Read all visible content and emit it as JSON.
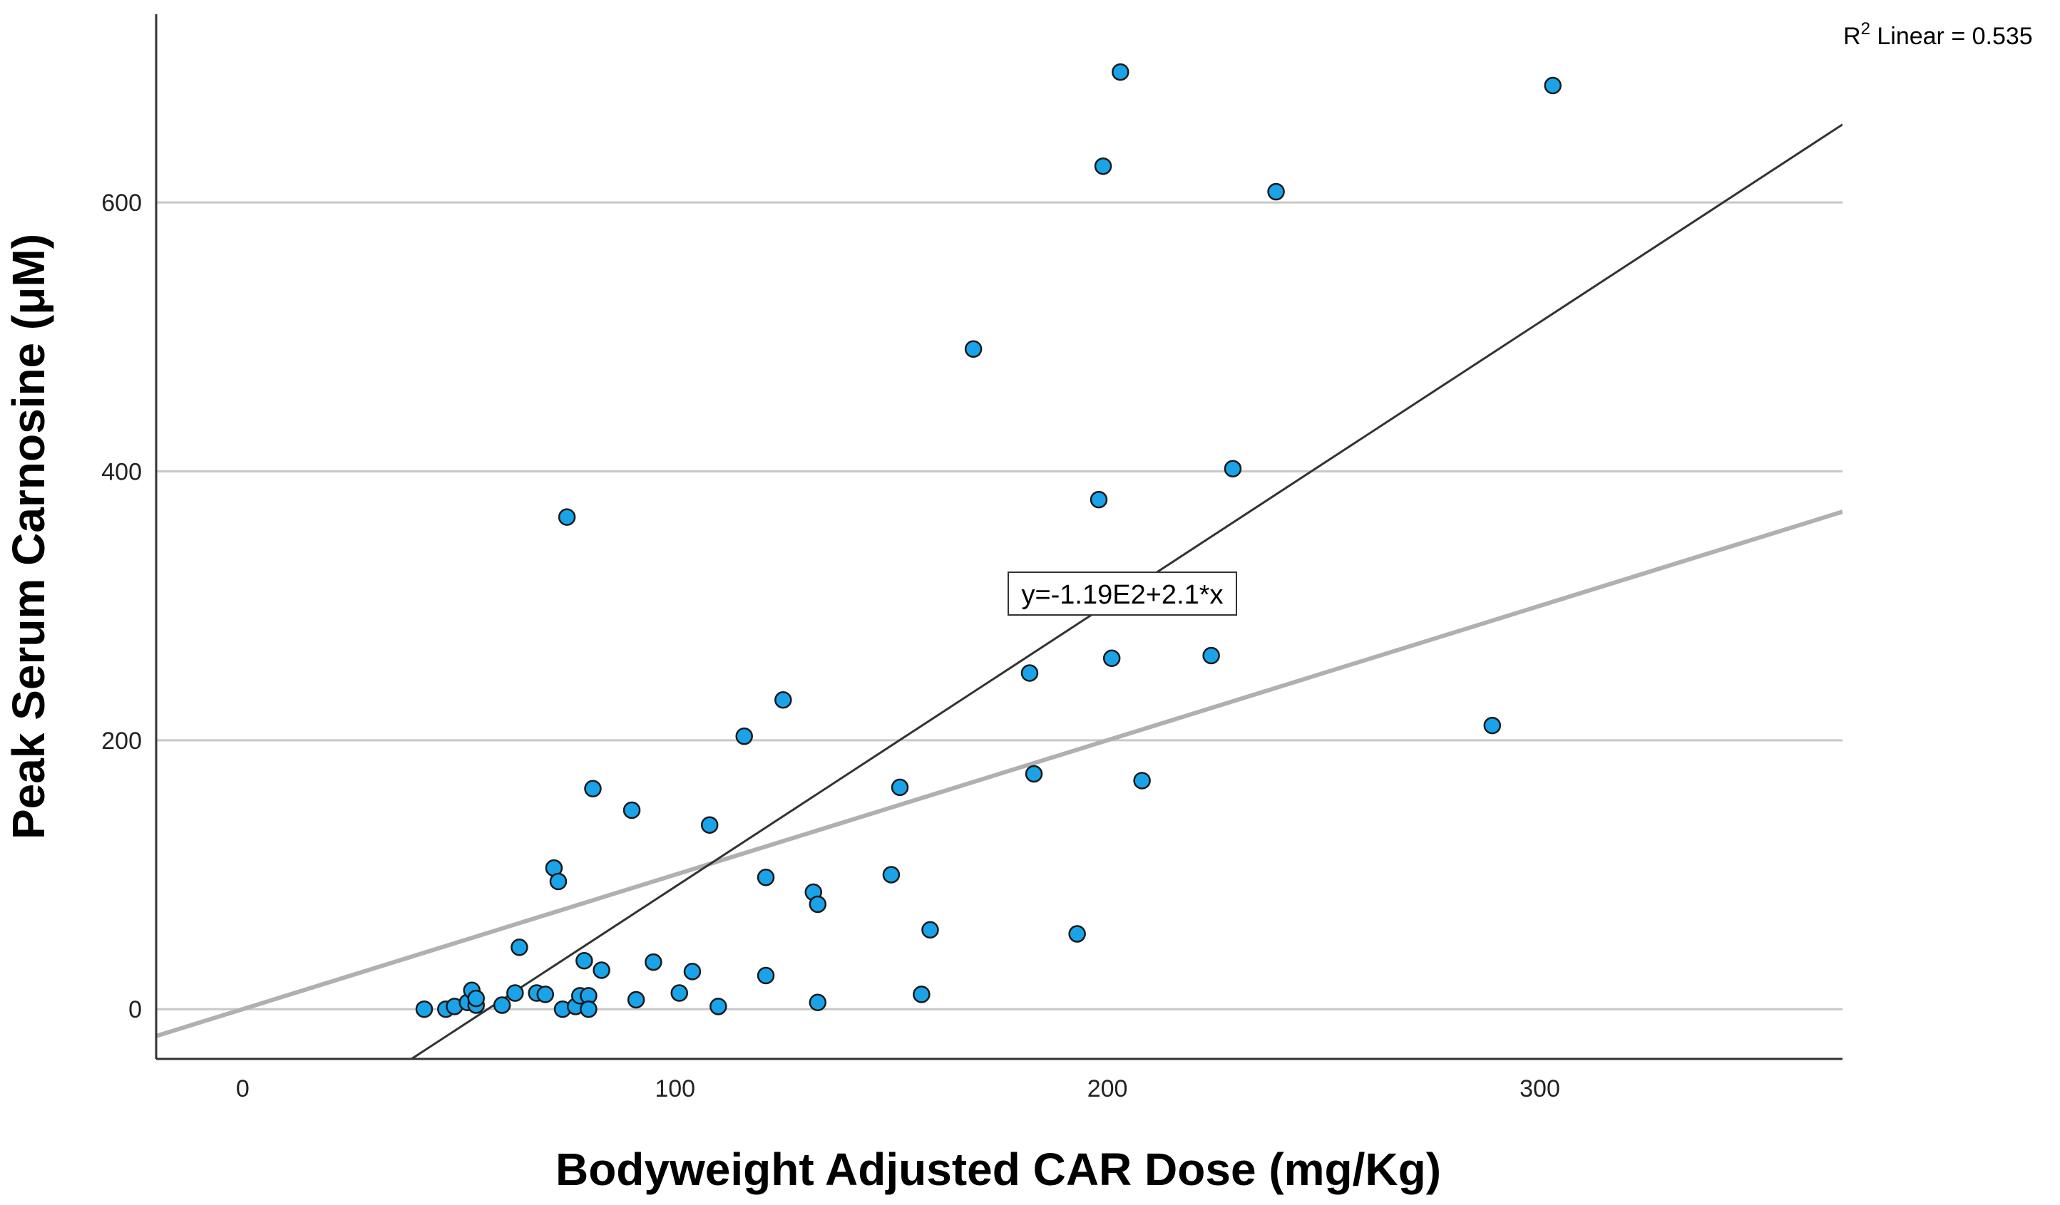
{
  "chart_data": {
    "type": "scatter",
    "xlabel": "Bodyweight Adjusted CAR Dose (mg/Kg)",
    "ylabel": "Peak Serum Carnosine (μM)",
    "xlim": [
      -20,
      370
    ],
    "ylim": [
      -37,
      740
    ],
    "xticks": [
      0,
      100,
      200,
      300
    ],
    "yticks": [
      0,
      200,
      400,
      600
    ],
    "grid": "horizontal",
    "fit_line": {
      "intercept": -119,
      "slope": 2.1,
      "label": "y=-1.19E2+2.1*x"
    },
    "reference_line": {
      "intercept": 0,
      "slope": 1
    },
    "r2_label": {
      "prefix": "R",
      "sup": "2",
      "text": " Linear = 0.535"
    },
    "points": [
      [
        42,
        0
      ],
      [
        47,
        0
      ],
      [
        49,
        2
      ],
      [
        52,
        5
      ],
      [
        53,
        14
      ],
      [
        54,
        3
      ],
      [
        54,
        8
      ],
      [
        60,
        3
      ],
      [
        63,
        12
      ],
      [
        64,
        46
      ],
      [
        68,
        12
      ],
      [
        70,
        11
      ],
      [
        72,
        105
      ],
      [
        73,
        95
      ],
      [
        74,
        0
      ],
      [
        75,
        366
      ],
      [
        77,
        2
      ],
      [
        78,
        10
      ],
      [
        79,
        36
      ],
      [
        80,
        10
      ],
      [
        80,
        0
      ],
      [
        81,
        164
      ],
      [
        83,
        29
      ],
      [
        90,
        148
      ],
      [
        91,
        7
      ],
      [
        95,
        35
      ],
      [
        101,
        12
      ],
      [
        104,
        28
      ],
      [
        108,
        137
      ],
      [
        110,
        2
      ],
      [
        116,
        203
      ],
      [
        121,
        98
      ],
      [
        121,
        25
      ],
      [
        125,
        230
      ],
      [
        132,
        87
      ],
      [
        133,
        78
      ],
      [
        133,
        5
      ],
      [
        150,
        100
      ],
      [
        152,
        165
      ],
      [
        157,
        11
      ],
      [
        159,
        59
      ],
      [
        169,
        491
      ],
      [
        182,
        250
      ],
      [
        183,
        175
      ],
      [
        193,
        56
      ],
      [
        198,
        379
      ],
      [
        199,
        627
      ],
      [
        201,
        261
      ],
      [
        203,
        697
      ],
      [
        208,
        170
      ],
      [
        224,
        263
      ],
      [
        229,
        402
      ],
      [
        239,
        608
      ],
      [
        289,
        211
      ],
      [
        303,
        687
      ]
    ]
  },
  "colors": {
    "point_fill": "#1aa3e8",
    "point_stroke": "#1a1a1a",
    "fit_line": "#333333",
    "reference_line": "#b0b0b0",
    "grid": "#c8c8c8",
    "axis": "#333333"
  }
}
